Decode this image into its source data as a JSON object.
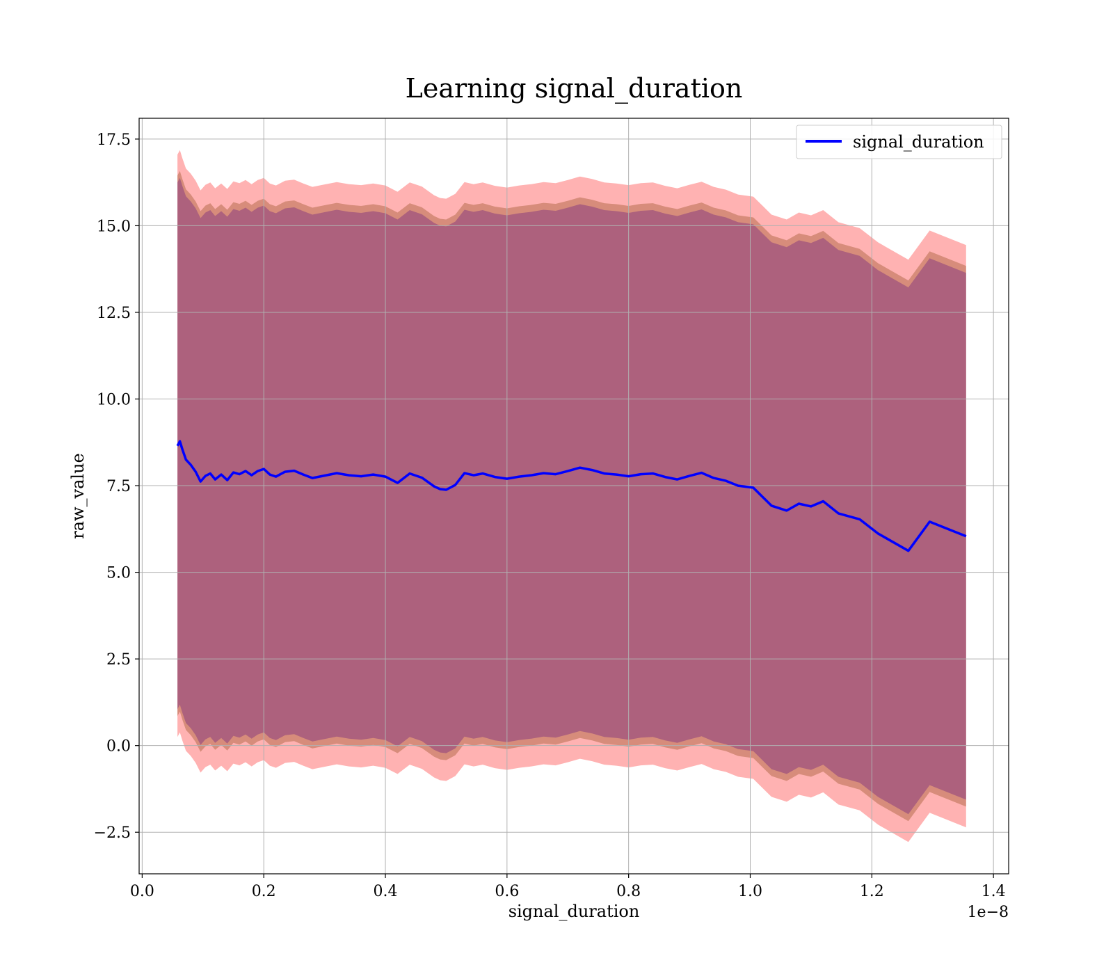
{
  "chart_data": {
    "type": "line",
    "title": "Learning signal_duration",
    "xlabel": "signal_duration",
    "ylabel": "raw_value",
    "x_offset_label": "1e−8",
    "xlim": [
      -0.005,
      1.425
    ],
    "ylim": [
      -3.7,
      18.1
    ],
    "x_ticks": [
      0.0,
      0.2,
      0.4,
      0.6,
      0.8,
      1.0,
      1.2,
      1.4
    ],
    "x_tick_labels": [
      "0.0",
      "0.2",
      "0.4",
      "0.6",
      "0.8",
      "1.0",
      "1.2",
      "1.4"
    ],
    "y_ticks": [
      -2.5,
      0.0,
      2.5,
      5.0,
      7.5,
      10.0,
      12.5,
      15.0,
      17.5
    ],
    "y_tick_labels": [
      "−2.5",
      "0.0",
      "2.5",
      "5.0",
      "7.5",
      "10.0",
      "12.5",
      "15.0",
      "17.5"
    ],
    "grid": true,
    "legend_position": "top-right",
    "colors": {
      "line": "#0000ff",
      "outer_band": "#ff0000",
      "mid_band": "#8b4513",
      "inner_band": "#4b0082"
    },
    "series": [
      {
        "name": "signal_duration",
        "x": [
          0.058,
          0.062,
          0.066,
          0.072,
          0.08,
          0.088,
          0.096,
          0.104,
          0.112,
          0.12,
          0.13,
          0.14,
          0.15,
          0.16,
          0.17,
          0.18,
          0.19,
          0.2,
          0.21,
          0.22,
          0.235,
          0.25,
          0.265,
          0.28,
          0.3,
          0.32,
          0.34,
          0.36,
          0.38,
          0.4,
          0.42,
          0.44,
          0.46,
          0.48,
          0.49,
          0.5,
          0.515,
          0.53,
          0.545,
          0.56,
          0.58,
          0.6,
          0.62,
          0.64,
          0.66,
          0.68,
          0.7,
          0.72,
          0.74,
          0.76,
          0.78,
          0.8,
          0.82,
          0.84,
          0.86,
          0.88,
          0.9,
          0.92,
          0.94,
          0.96,
          0.98,
          1.005,
          1.02,
          1.035,
          1.06,
          1.08,
          1.1,
          1.12,
          1.145,
          1.18,
          1.21,
          1.26,
          1.295,
          1.355
        ],
        "y": [
          8.65,
          8.78,
          8.55,
          8.25,
          8.1,
          7.9,
          7.62,
          7.78,
          7.85,
          7.68,
          7.82,
          7.66,
          7.88,
          7.83,
          7.92,
          7.8,
          7.92,
          7.98,
          7.82,
          7.76,
          7.9,
          7.93,
          7.82,
          7.72,
          7.79,
          7.86,
          7.8,
          7.77,
          7.82,
          7.76,
          7.58,
          7.85,
          7.73,
          7.48,
          7.4,
          7.38,
          7.52,
          7.86,
          7.8,
          7.85,
          7.75,
          7.7,
          7.76,
          7.8,
          7.86,
          7.83,
          7.92,
          8.02,
          7.95,
          7.85,
          7.82,
          7.77,
          7.83,
          7.85,
          7.75,
          7.68,
          7.78,
          7.87,
          7.72,
          7.64,
          7.5,
          7.44,
          7.18,
          6.92,
          6.78,
          6.98,
          6.9,
          7.05,
          6.7,
          6.53,
          6.12,
          5.62,
          6.46,
          6.04
        ]
      }
    ],
    "bands": [
      {
        "color": "#ff0000",
        "opacity": 0.3,
        "half_width": 8.4
      },
      {
        "color": "#8b4513",
        "opacity": 0.35,
        "half_width": 7.8
      },
      {
        "color": "#4b0082",
        "opacity": 0.3,
        "half_width": 7.6
      }
    ]
  }
}
